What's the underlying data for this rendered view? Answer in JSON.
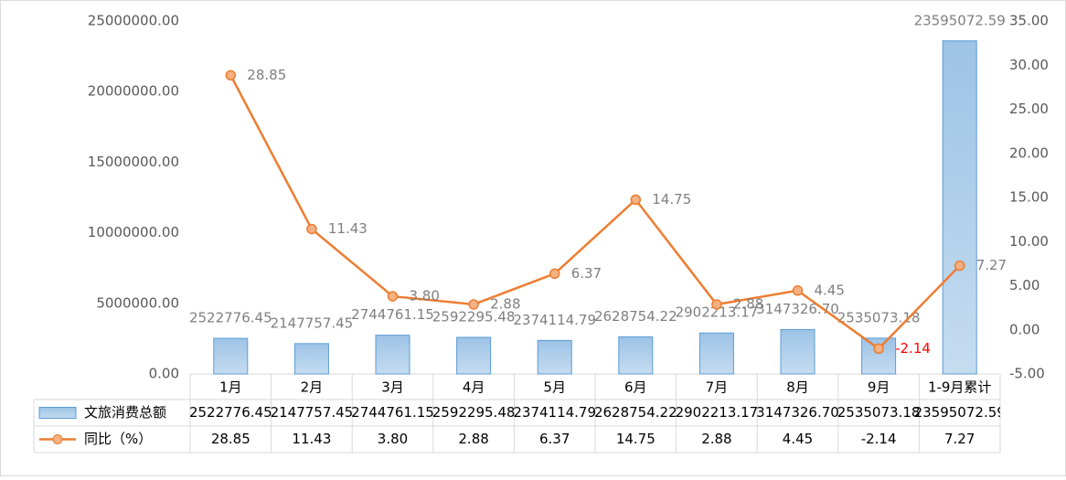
{
  "chart_data": {
    "type": "combo",
    "categories": [
      "1月",
      "2月",
      "3月",
      "4月",
      "5月",
      "6月",
      "7月",
      "8月",
      "9月",
      "1-9月累计"
    ],
    "series": [
      {
        "name": "文旅消费总额",
        "type": "bar",
        "color": "#5b9bd5",
        "values": [
          2522776.45,
          2147757.45,
          2744761.15,
          2592295.48,
          2374114.79,
          2628754.22,
          2902213.17,
          3147326.7,
          2535073.18,
          23595072.59
        ],
        "value_labels": [
          "2522776.45",
          "2147757.45",
          "2744761.15",
          "2592295.48",
          "2374114.79",
          "2628754.22",
          "2902213.17",
          "3147326.70",
          "2535073.18",
          "23595072.59"
        ]
      },
      {
        "name": "同比（%）",
        "type": "line",
        "axis": "y2",
        "color": "#ed7d31",
        "negative_label_color": "#ff0000",
        "values": [
          28.85,
          11.43,
          3.8,
          2.88,
          6.37,
          14.75,
          2.88,
          4.45,
          -2.14,
          7.27
        ],
        "value_labels": [
          "28.85",
          "11.43",
          "3.80",
          "2.88",
          "6.37",
          "14.75",
          "2.88",
          "4.45",
          "-2.14",
          "7.27"
        ]
      }
    ],
    "ylim": [
      0,
      25000000
    ],
    "yticks": [
      {
        "value": 0,
        "label": "0.00"
      },
      {
        "value": 5000000,
        "label": "5000000.00"
      },
      {
        "value": 10000000,
        "label": "10000000.00"
      },
      {
        "value": 15000000,
        "label": "15000000.00"
      },
      {
        "value": 20000000,
        "label": "20000000.00"
      },
      {
        "value": 25000000,
        "label": "25000000.00"
      }
    ],
    "y2lim": [
      -5,
      35
    ],
    "y2ticks": [
      {
        "value": -5,
        "label": "-5.00"
      },
      {
        "value": 0,
        "label": "0.00"
      },
      {
        "value": 5,
        "label": "5.00"
      },
      {
        "value": 10,
        "label": "10.00"
      },
      {
        "value": 15,
        "label": "15.00"
      },
      {
        "value": 20,
        "label": "20.00"
      },
      {
        "value": 25,
        "label": "25.00"
      },
      {
        "value": 30,
        "label": "30.00"
      },
      {
        "value": 35,
        "label": "35.00"
      }
    ],
    "grid": false
  }
}
